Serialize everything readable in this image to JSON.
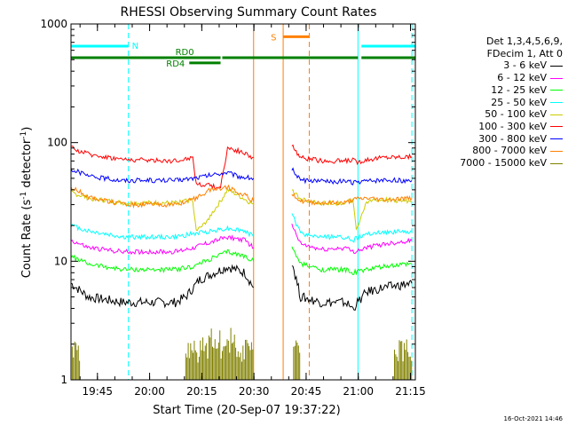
{
  "chart_data": {
    "type": "line",
    "title": "RHESSI Observing Summary Count Rates",
    "xlabel": "Start Time (20-Sep-07 19:37:22)",
    "ylabel": "Count Rate (s",
    "ylabel_sup1": "-1",
    "ylabel_mid": " detector",
    "ylabel_sup2": "-1",
    "ylabel_end": ")",
    "y_scale": "log",
    "ylim": [
      1,
      1000
    ],
    "xlim_minutes": [
      0,
      99
    ],
    "x_ticks": [
      {
        "label": "19:45",
        "min": 7.6
      },
      {
        "label": "20:00",
        "min": 22.6
      },
      {
        "label": "20:15",
        "min": 37.6
      },
      {
        "label": "20:30",
        "min": 52.6
      },
      {
        "label": "20:45",
        "min": 67.6
      },
      {
        "label": "21:00",
        "min": 82.6
      },
      {
        "label": "21:15",
        "min": 97.6
      }
    ],
    "y_ticks": [
      {
        "label": "1",
        "value": 1
      },
      {
        "label": "10",
        "value": 10
      },
      {
        "label": "100",
        "value": 100
      },
      {
        "label": "1000",
        "value": 1000
      }
    ],
    "legend_header": [
      "Det 1,3,4,5,6,9,",
      "FDecim 1, Att 0"
    ],
    "series": [
      {
        "name": "3 - 6 keV",
        "color": "#000000",
        "segments": [
          {
            "x": [
              0,
              5,
              15,
              30,
              33,
              37,
              45,
              50,
              52.5
            ],
            "y": [
              6.5,
              5,
              4.5,
              4.5,
              5,
              7,
              9,
              8,
              6
            ]
          },
          {
            "x": [
              63.5,
              66,
              72,
              79,
              81,
              85,
              90,
              98
            ],
            "y": [
              10,
              5,
              4.5,
              4.5,
              4,
              5.5,
              6,
              6.5
            ]
          }
        ]
      },
      {
        "name": "6 - 12 keV",
        "color": "#ff00ff",
        "segments": [
          {
            "x": [
              0,
              5,
              15,
              30,
              35,
              45,
              50,
              52.5
            ],
            "y": [
              15,
              13,
              12,
              12,
              13,
              16,
              15,
              13
            ]
          },
          {
            "x": [
              63.5,
              66,
              72,
              79,
              81,
              85,
              90,
              98
            ],
            "y": [
              20,
              14,
              12.5,
              13,
              12,
              13,
              14,
              15
            ]
          }
        ]
      },
      {
        "name": "12 - 25 keV",
        "color": "#00ff00",
        "segments": [
          {
            "x": [
              0,
              5,
              15,
              30,
              35,
              45,
              50,
              52.5
            ],
            "y": [
              11,
              9.5,
              8.5,
              8.5,
              9,
              12,
              11,
              10
            ]
          },
          {
            "x": [
              63.5,
              66,
              72,
              79,
              81,
              85,
              90,
              98
            ],
            "y": [
              13,
              9.5,
              8.5,
              8.5,
              8,
              8.5,
              9,
              9.5
            ]
          }
        ]
      },
      {
        "name": "25 - 50 keV",
        "color": "#00ffff",
        "segments": [
          {
            "x": [
              0,
              5,
              15,
              30,
              35,
              45,
              50,
              52.5
            ],
            "y": [
              20,
              18,
              16,
              16,
              17,
              19,
              18,
              16
            ]
          },
          {
            "x": [
              63.5,
              66,
              72,
              79,
              81,
              85,
              90,
              98
            ],
            "y": [
              25,
              17,
              16,
              16,
              15,
              17,
              17.5,
              18
            ]
          }
        ]
      },
      {
        "name": "50 - 100 keV",
        "color": "#cccc00",
        "segments": [
          {
            "x": [
              0,
              5,
              15,
              30,
              35,
              36,
              38,
              43,
              45,
              48,
              52.5
            ],
            "y": [
              38,
              34,
              31,
              31,
              33,
              18,
              20,
              32,
              40,
              36,
              30
            ]
          },
          {
            "x": [
              63.5,
              66,
              72,
              79,
              81,
              82,
              85,
              90,
              98
            ],
            "y": [
              40,
              33,
              31,
              31,
              33,
              18,
              32,
              33,
              32
            ]
          }
        ]
      },
      {
        "name": "100 - 300 keV",
        "color": "#ff0000",
        "segments": [
          {
            "x": [
              0,
              5,
              15,
              30,
              35,
              36,
              43,
              45,
              48,
              52.5
            ],
            "y": [
              90,
              80,
              72,
              70,
              75,
              45,
              42,
              90,
              85,
              75
            ]
          },
          {
            "x": [
              63.5,
              66,
              72,
              79,
              81,
              82,
              85,
              90,
              98
            ],
            "y": [
              95,
              75,
              70,
              70,
              72,
              68,
              72,
              75,
              76
            ]
          }
        ]
      },
      {
        "name": "300 - 800 keV",
        "color": "#0000ff",
        "segments": [
          {
            "x": [
              0,
              5,
              15,
              30,
              35,
              43,
              45,
              48,
              52.5
            ],
            "y": [
              60,
              52,
              48,
              48,
              50,
              55,
              56,
              52,
              50
            ]
          },
          {
            "x": [
              63.5,
              66,
              72,
              79,
              81,
              85,
              90,
              98
            ],
            "y": [
              60,
              48,
              47,
              47,
              46,
              47,
              48,
              48
            ]
          }
        ]
      },
      {
        "name": "800 - 7000 keV",
        "color": "#ff8000",
        "segments": [
          {
            "x": [
              0,
              5,
              15,
              30,
              35,
              40,
              45,
              50,
              52.5
            ],
            "y": [
              42,
              35,
              30,
              30,
              33,
              40,
              42,
              36,
              32
            ]
          },
          {
            "x": [
              63.5,
              66,
              72,
              79,
              81,
              85,
              90,
              98
            ],
            "y": [
              38,
              32,
              31,
              31,
              33,
              34,
              33,
              34
            ]
          }
        ]
      },
      {
        "name": "7000 - 15000 keV",
        "color": "#808000",
        "segments": []
      }
    ],
    "state_bars": [
      {
        "label": "N",
        "color": "#00ffff",
        "y": 650,
        "spans": [
          [
            0,
            16.5
          ],
          [
            83.5,
            99
          ]
        ]
      },
      {
        "label": "S",
        "color": "#ff8000",
        "y": 780,
        "spans": [
          [
            61,
            68.5
          ]
        ]
      },
      {
        "label": "RD0",
        "color": "#008000",
        "y": 520,
        "spans": [
          [
            0,
            43
          ],
          [
            43.5,
            82.5
          ],
          [
            83.5,
            99
          ]
        ]
      },
      {
        "label": "RD4",
        "color": "#008000",
        "y": 470,
        "spans": [
          [
            34,
            43
          ]
        ]
      }
    ],
    "vertical_lines": [
      {
        "x": 0,
        "color": "#00ffff",
        "style": "solid"
      },
      {
        "x": 16.5,
        "color": "#00ffff",
        "style": "dashed"
      },
      {
        "x": 52.5,
        "color": "#ff8000",
        "style": "solid"
      },
      {
        "x": 61,
        "color": "#ff8000",
        "style": "solid"
      },
      {
        "x": 68.5,
        "color": "#ff8000",
        "style": "dashed"
      },
      {
        "x": 82.5,
        "color": "#00ffff",
        "style": "solid"
      },
      {
        "x": 98,
        "color": "#00ffff",
        "style": "dashed"
      }
    ]
  },
  "footer_stamp": "16-Oct-2021 14:46"
}
